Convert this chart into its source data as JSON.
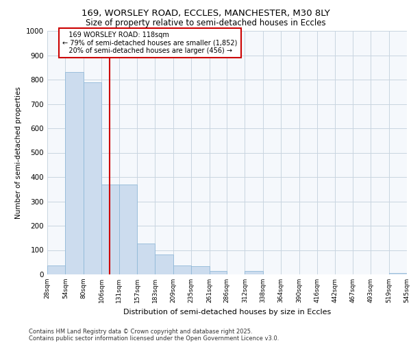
{
  "title_line1": "169, WORSLEY ROAD, ECCLES, MANCHESTER, M30 8LY",
  "title_line2": "Size of property relative to semi-detached houses in Eccles",
  "xlabel": "Distribution of semi-detached houses by size in Eccles",
  "ylabel": "Number of semi-detached properties",
  "property_size": 118,
  "property_label": "169 WORSLEY ROAD: 118sqm",
  "pct_smaller": 79,
  "n_smaller": "1,852",
  "pct_larger": 20,
  "n_larger": "456",
  "bar_color": "#ccdcee",
  "bar_edge_color": "#90b8d8",
  "highlight_color": "#cc0000",
  "background_color": "#f5f8fc",
  "grid_color": "#c8d4e0",
  "bins": [
    28,
    54,
    80,
    106,
    131,
    157,
    183,
    209,
    235,
    261,
    286,
    312,
    338,
    364,
    390,
    416,
    442,
    467,
    493,
    519,
    545
  ],
  "bin_labels": [
    "28sqm",
    "54sqm",
    "80sqm",
    "106sqm",
    "131sqm",
    "157sqm",
    "183sqm",
    "209sqm",
    "235sqm",
    "261sqm",
    "286sqm",
    "312sqm",
    "338sqm",
    "364sqm",
    "390sqm",
    "416sqm",
    "442sqm",
    "467sqm",
    "493sqm",
    "519sqm",
    "545sqm"
  ],
  "counts": [
    38,
    830,
    790,
    370,
    370,
    128,
    83,
    38,
    35,
    15,
    0,
    15,
    0,
    0,
    0,
    0,
    0,
    0,
    0,
    5
  ],
  "ylim": [
    0,
    1000
  ],
  "yticks": [
    0,
    100,
    200,
    300,
    400,
    500,
    600,
    700,
    800,
    900,
    1000
  ],
  "footer_line1": "Contains HM Land Registry data © Crown copyright and database right 2025.",
  "footer_line2": "Contains public sector information licensed under the Open Government Licence v3.0."
}
